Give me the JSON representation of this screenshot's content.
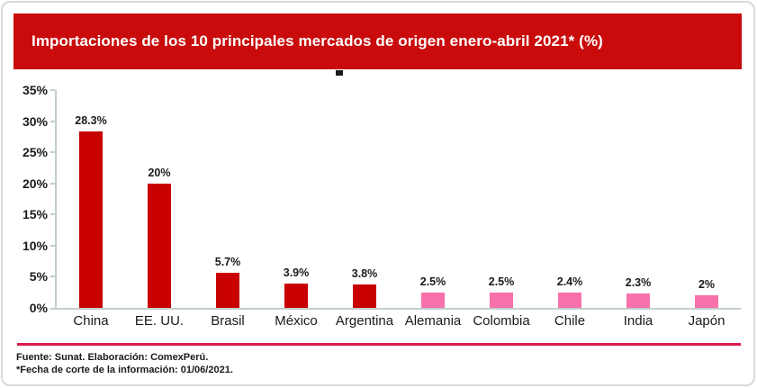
{
  "card": {
    "banner": {
      "title": "Importaciones de los 10 principales mercados de origen enero-abril 2021* (%)",
      "bg_color": "#c90b0b",
      "text_color": "#ffffff"
    },
    "divider_color": "#dd1a4b",
    "footer": {
      "source_line": "Fuente: Sunat. Elaboración: ComexPerú.",
      "note_line": "*Fecha de corte de la información: 01/06/2021."
    }
  },
  "chart_data": {
    "type": "bar",
    "title": "Importaciones de los 10 principales mercados de origen enero-abril 2021* (%)",
    "categories": [
      "China",
      "EE. UU.",
      "Brasil",
      "México",
      "Argentina",
      "Alemania",
      "Colombia",
      "Chile",
      "India",
      "Japón"
    ],
    "values": [
      28.3,
      20,
      5.7,
      3.9,
      3.8,
      2.5,
      2.5,
      2.4,
      2.3,
      2
    ],
    "data_labels": [
      "28.3%",
      "20%",
      "5.7%",
      "3.9%",
      "3.8%",
      "2.5%",
      "2.5%",
      "2.4%",
      "2.3%",
      "2%"
    ],
    "bar_colors": [
      "#c80000",
      "#c80000",
      "#c80000",
      "#c80000",
      "#c80000",
      "#f871ac",
      "#f871ac",
      "#f871ac",
      "#f871ac",
      "#f871ac"
    ],
    "y_ticks": [
      "35%",
      "30%",
      "25%",
      "20%",
      "15%",
      "10%",
      "5%",
      "0%"
    ],
    "y_tick_values": [
      35,
      30,
      25,
      20,
      15,
      10,
      5,
      0
    ],
    "ylim": [
      0,
      35
    ],
    "xlabel": "",
    "ylabel": "",
    "grid": false,
    "legend_position": "none",
    "axis_color": "#c3cecc"
  }
}
